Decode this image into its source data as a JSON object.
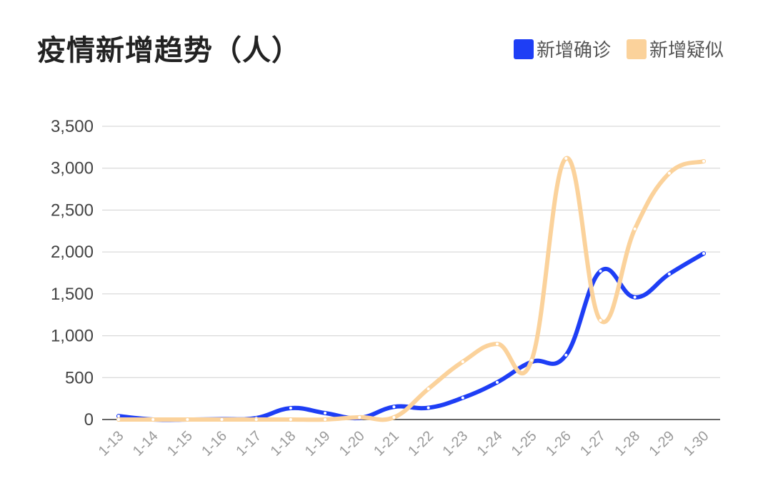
{
  "title": "疫情新增趋势（人）",
  "legend": [
    {
      "label": "新增确诊",
      "color": "#1e3ef5"
    },
    {
      "label": "新增疑似",
      "color": "#fbd29b"
    }
  ],
  "chart_data": {
    "type": "line",
    "title": "疫情新增趋势（人）",
    "xlabel": "",
    "ylabel": "",
    "ylim": [
      0,
      3500
    ],
    "yticks": [
      0,
      500,
      1000,
      1500,
      2000,
      2500,
      3000,
      3500
    ],
    "ytick_labels": [
      "0",
      "500",
      "1,000",
      "1,500",
      "2,000",
      "2,500",
      "3,000",
      "3,500"
    ],
    "grid": true,
    "legend_position": "top-right",
    "smooth": true,
    "categories": [
      "1-13",
      "1-14",
      "1-15",
      "1-16",
      "1-17",
      "1-18",
      "1-19",
      "1-20",
      "1-21",
      "1-22",
      "1-23",
      "1-24",
      "1-25",
      "1-26",
      "1-27",
      "1-28",
      "1-29",
      "1-30"
    ],
    "series": [
      {
        "name": "新增确诊",
        "color": "#1e3ef5",
        "values": [
          41,
          0,
          0,
          4,
          17,
          136,
          77,
          19,
          151,
          140,
          259,
          444,
          688,
          769,
          1771,
          1459,
          1737,
          1982
        ]
      },
      {
        "name": "新增疑似",
        "color": "#fbd29b",
        "values": [
          0,
          0,
          0,
          0,
          0,
          0,
          0,
          27,
          26,
          366,
          690,
          903,
          707,
          3117,
          1184,
          2275,
          2940,
          3083
        ]
      }
    ]
  }
}
